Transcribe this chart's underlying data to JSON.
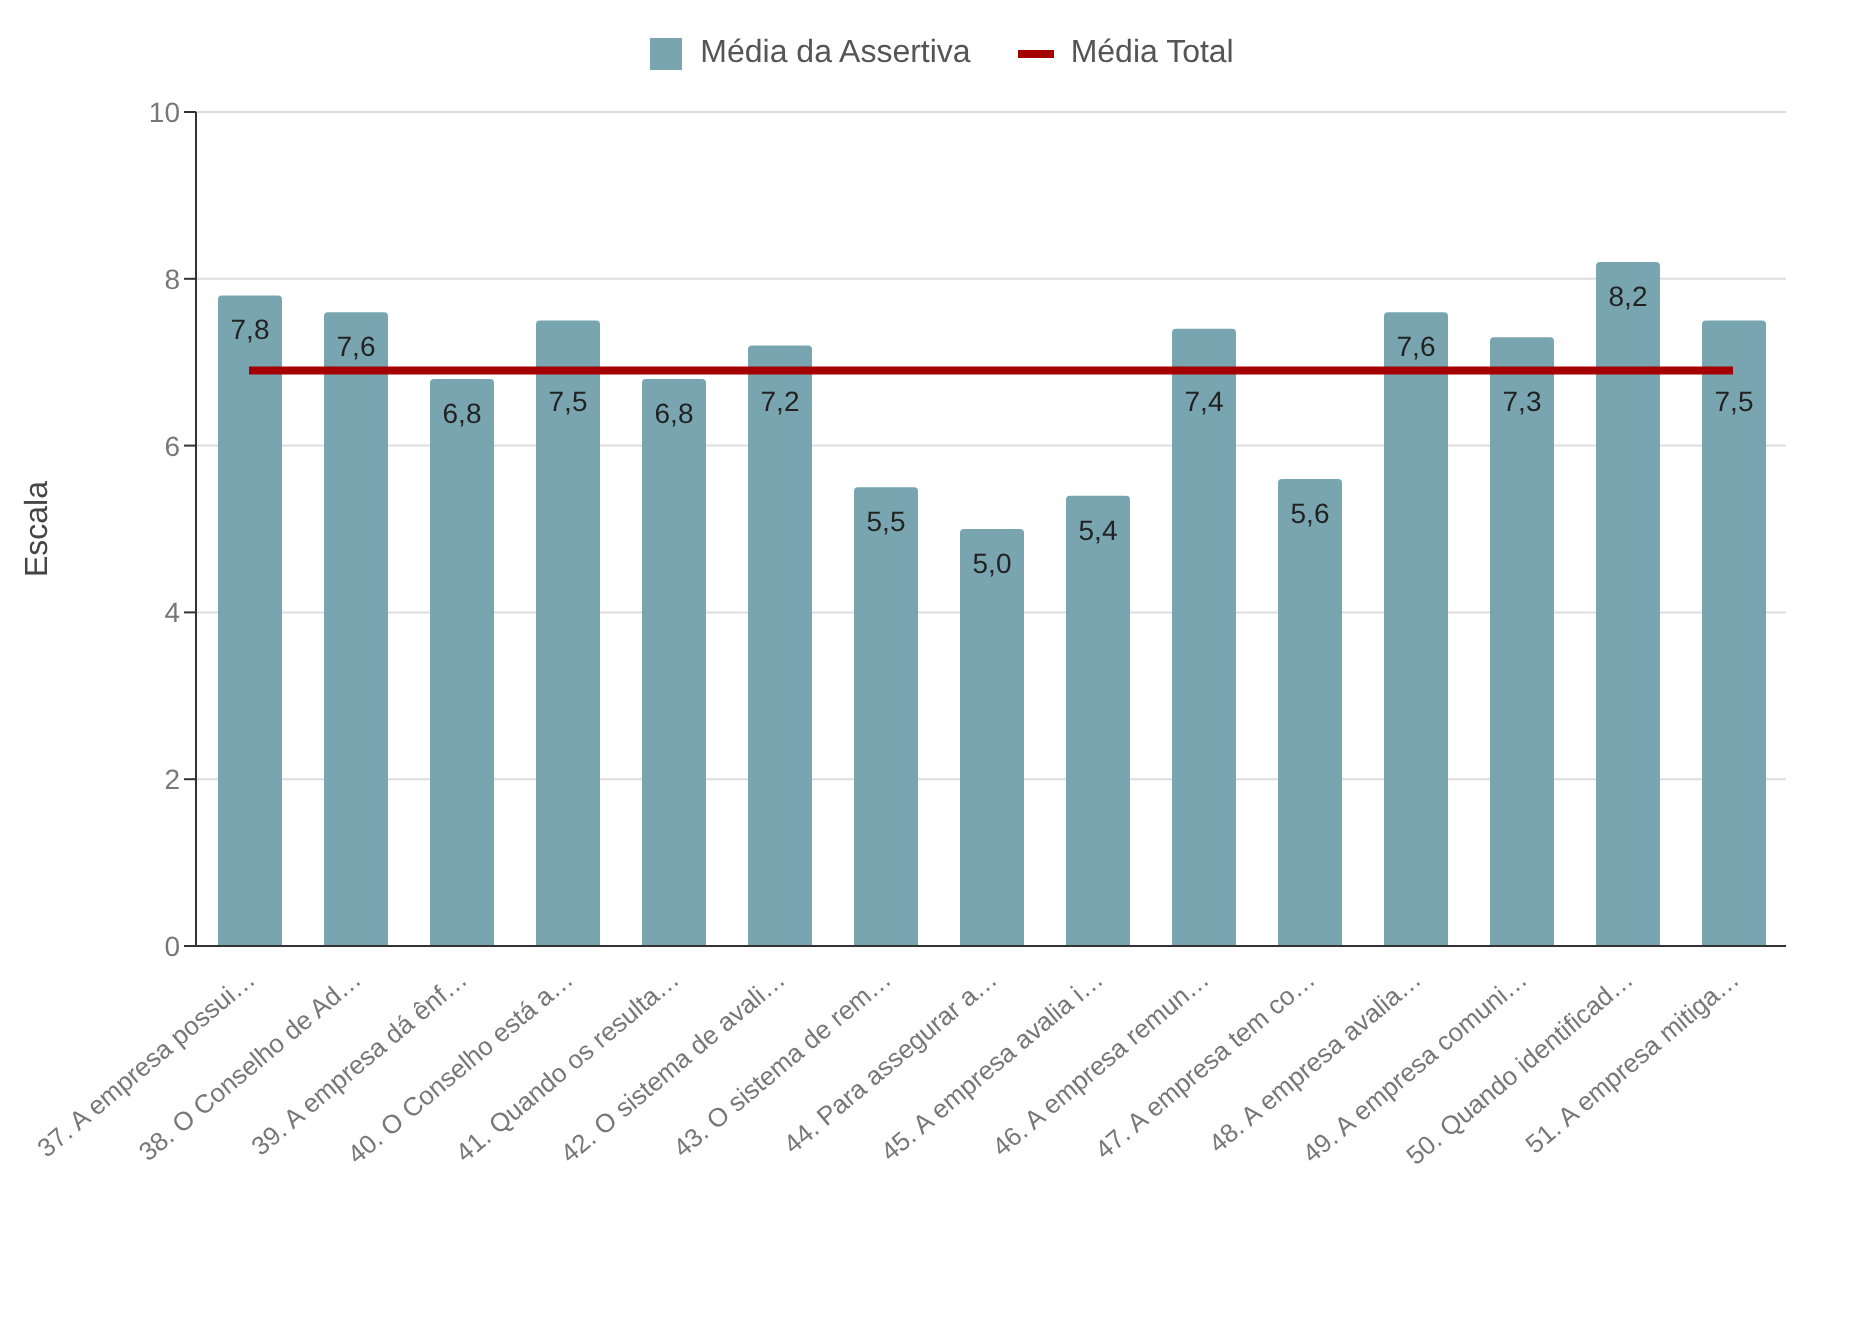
{
  "chart_data": {
    "type": "bar",
    "ylabel": "Escala",
    "categories": [
      "37. A empresa possui…",
      "38. O Conselho de Ad…",
      "39. A empresa dá ênf…",
      "40. O Conselho está a…",
      "41. Quando os resulta…",
      "42. O sistema de avali…",
      "43. O sistema de rem…",
      "44. Para assegurar a…",
      "45. A empresa avalia i…",
      "46. A empresa remun…",
      "47. A empresa tem co…",
      "48. A empresa avalia…",
      "49. A empresa comuni…",
      "50. Quando identificad…",
      "51. A empresa mitiga…"
    ],
    "series": [
      {
        "name": "Média da Assertiva",
        "color": "#78a5b0",
        "values": [
          7.8,
          7.6,
          6.8,
          7.5,
          6.8,
          7.2,
          5.5,
          5.0,
          5.4,
          7.4,
          5.6,
          7.6,
          7.3,
          8.2,
          7.5
        ],
        "value_labels": [
          "7,8",
          "7,6",
          "6,8",
          "7,5",
          "6,8",
          "7,2",
          "5,5",
          "5,0",
          "5,4",
          "7,4",
          "5,6",
          "7,6",
          "7,3",
          "8,2",
          "7,5"
        ]
      },
      {
        "name": "Média Total",
        "type": "line",
        "color": "#a50000",
        "values": [
          6.9,
          6.9,
          6.9,
          6.9,
          6.9,
          6.9,
          6.9,
          6.9,
          6.9,
          6.9,
          6.9,
          6.9,
          6.9,
          6.9,
          6.9
        ]
      }
    ],
    "ylim": [
      0,
      10
    ],
    "yticks": [
      0,
      2,
      4,
      6,
      8,
      10
    ],
    "grid": "y",
    "legend": "top",
    "marker": "none"
  }
}
